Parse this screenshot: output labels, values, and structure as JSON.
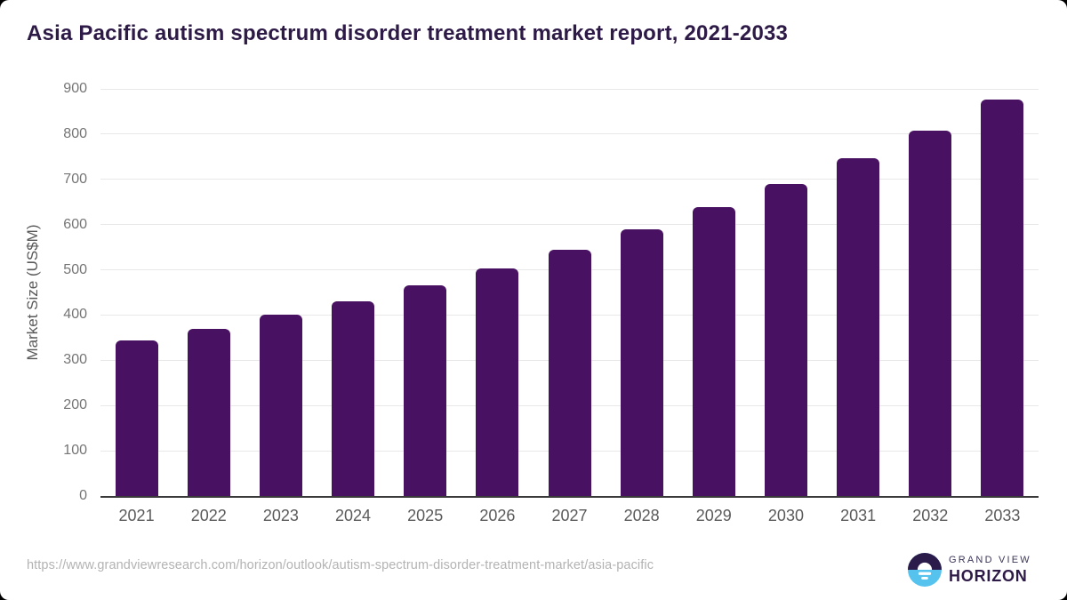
{
  "page": {
    "title": "Asia Pacific autism spectrum disorder treatment market report, 2021-2033"
  },
  "chart_data": {
    "type": "bar",
    "title": "Asia Pacific autism spectrum disorder treatment market report, 2021-2033",
    "categories": [
      "2021",
      "2022",
      "2023",
      "2024",
      "2025",
      "2026",
      "2027",
      "2028",
      "2029",
      "2030",
      "2031",
      "2032",
      "2033"
    ],
    "values": [
      343,
      370,
      400,
      431,
      466,
      504,
      545,
      589,
      638,
      690,
      747,
      808,
      877
    ],
    "xlabel": "",
    "ylabel": "Market Size (US$M)",
    "ylim": [
      0,
      900
    ],
    "ytick_interval": 100,
    "yticks": [
      0,
      100,
      200,
      300,
      400,
      500,
      600,
      700,
      800,
      900
    ],
    "grid": "horizontal",
    "legend": "none",
    "bar_color": "#481161"
  },
  "footer": {
    "source_url": "https://www.grandviewresearch.com/horizon/outlook/autism-spectrum-disorder-treatment-market/asia-pacific",
    "logo": {
      "brand_line1": "GRAND VIEW",
      "brand_line2": "HORIZON"
    }
  },
  "colors": {
    "bar": "#481161",
    "title_text": "#2e1a47",
    "axis_text": "#6e6e6e",
    "gridline": "#e8e8e8",
    "axis_line": "#3a3a3a",
    "footer_text": "#b3b3b3",
    "logo_blue": "#56c3ee",
    "logo_dark": "#2b1b4a"
  }
}
